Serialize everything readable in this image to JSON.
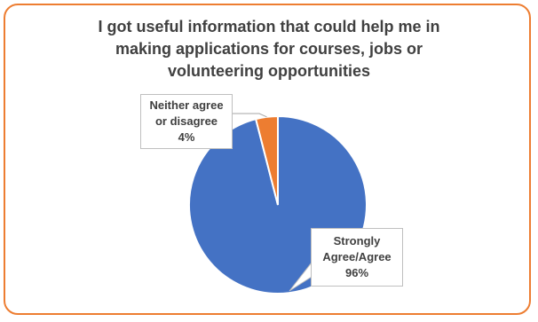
{
  "chart_data": {
    "type": "pie",
    "title_lines": [
      "I got useful information that could help me in",
      "making applications for courses, jobs or",
      "volunteering opportunities"
    ],
    "slices": [
      {
        "category": "Strongly Agree/Agree",
        "label_lines": [
          "Strongly",
          "Agree/Agree"
        ],
        "value": 96,
        "value_label": "96%",
        "color": "#4472c4"
      },
      {
        "category": "Neither agree or disagree",
        "label_lines": [
          "Neither agree",
          "or disagree"
        ],
        "value": 4,
        "value_label": "4%",
        "color": "#ed7d31"
      }
    ],
    "legend": "none",
    "data_labels": "callout"
  },
  "colors": {
    "border": "#ed7d31",
    "text": "#404040"
  }
}
